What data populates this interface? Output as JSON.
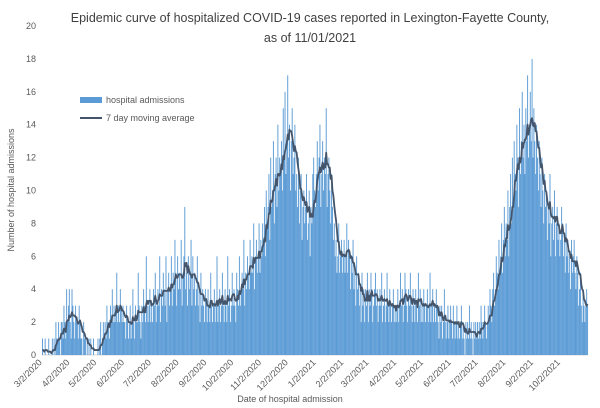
{
  "chart_data": {
    "type": "bar",
    "title": [
      "Epidemic curve of hospitalized COVID-19 cases reported in Lexington-Fayette County,",
      "as of 11/01/2021"
    ],
    "x_label": "Date of hospital admission",
    "y_label": "Number of hospital admissions",
    "ylim": [
      0,
      20
    ],
    "yticks": [
      0,
      2,
      4,
      6,
      8,
      10,
      12,
      14,
      16,
      18,
      20
    ],
    "xticks": [
      "3/2/2020",
      "4/2/2020",
      "5/2/2020",
      "6/2/2020",
      "7/2/2020",
      "8/2/2020",
      "9/2/2020",
      "10/2/2020",
      "11/2/2020",
      "12/2/2020",
      "1/2/2021",
      "2/2/2021",
      "3/2/2021",
      "4/2/2021",
      "5/2/2021",
      "6/2/2021",
      "7/2/2021",
      "8/2/2021",
      "9/2/2021",
      "10/2/2021"
    ],
    "legend": "upper left",
    "series": [
      {
        "name": "hospital admissions",
        "type": "bar",
        "color": "#5b9bd5",
        "values": [
          1,
          0,
          0,
          1,
          0,
          0,
          0,
          1,
          0,
          0,
          0,
          1,
          0,
          1,
          0,
          2,
          1,
          1,
          2,
          1,
          0,
          2,
          2,
          1,
          3,
          2,
          1,
          4,
          2,
          3,
          4,
          2,
          1,
          4,
          3,
          2,
          1,
          3,
          2,
          2,
          1,
          3,
          2,
          1,
          1,
          0,
          2,
          1,
          1,
          0,
          1,
          0,
          1,
          0,
          1,
          0,
          0,
          1,
          0,
          0,
          0,
          0,
          1,
          0,
          1,
          2,
          0,
          1,
          2,
          1,
          2,
          1,
          3,
          2,
          2,
          1,
          3,
          2,
          4,
          2,
          3,
          2,
          3,
          5,
          2,
          3,
          2,
          4,
          3,
          2,
          3,
          2,
          2,
          1,
          3,
          2,
          1,
          2,
          3,
          1,
          2,
          4,
          2,
          1,
          3,
          2,
          2,
          5,
          3,
          2,
          1,
          3,
          2,
          4,
          3,
          2,
          6,
          3,
          2,
          3,
          4,
          2,
          3,
          2,
          4,
          3,
          5,
          2,
          3,
          4,
          3,
          6,
          2,
          4,
          3,
          5,
          4,
          3,
          6,
          2,
          4,
          5,
          3,
          4,
          6,
          3,
          5,
          4,
          7,
          5,
          3,
          6,
          4,
          5,
          4,
          7,
          3,
          5,
          6,
          9,
          4,
          5,
          3,
          6,
          4,
          5,
          7,
          3,
          6,
          4,
          5,
          3,
          4,
          6,
          3,
          4,
          2,
          5,
          3,
          4,
          3,
          2,
          4,
          3,
          2,
          4,
          3,
          2,
          5,
          3,
          2,
          3,
          4,
          2,
          3,
          6,
          2,
          3,
          4,
          2,
          3,
          5,
          3,
          2,
          4,
          3,
          2,
          6,
          3,
          4,
          2,
          3,
          5,
          3,
          4,
          3,
          2,
          5,
          4,
          3,
          6,
          3,
          4,
          5,
          4,
          7,
          3,
          5,
          4,
          6,
          5,
          4,
          7,
          5,
          6,
          5,
          8,
          4,
          6,
          7,
          5,
          6,
          8,
          5,
          7,
          6,
          8,
          7,
          9,
          6,
          10,
          8,
          9,
          11,
          7,
          12,
          9,
          10,
          13,
          8,
          11,
          12,
          9,
          14,
          10,
          12,
          11,
          13,
          10,
          15,
          12,
          16,
          11,
          13,
          17,
          12,
          14,
          10,
          13,
          15,
          11,
          12,
          14,
          10,
          11,
          9,
          12,
          8,
          10,
          11,
          7,
          9,
          10,
          8,
          9,
          11,
          7,
          8,
          10,
          6,
          9,
          8,
          11,
          12,
          10,
          9,
          11,
          13,
          10,
          12,
          14,
          9,
          11,
          13,
          10,
          12,
          11,
          15,
          9,
          11,
          12,
          10,
          8,
          11,
          9,
          7,
          8,
          6,
          7,
          5,
          6,
          8,
          5,
          6,
          7,
          5,
          6,
          7,
          5,
          6,
          8,
          5,
          7,
          6,
          4,
          6,
          5,
          7,
          4,
          5,
          3,
          6,
          4,
          5,
          3,
          4,
          2,
          5,
          3,
          4,
          2,
          4,
          3,
          5,
          2,
          4,
          3,
          5,
          4,
          2,
          3,
          4,
          5,
          3,
          4,
          2,
          3,
          4,
          3,
          5,
          2,
          3,
          4,
          2,
          3,
          5,
          3,
          2,
          4,
          3,
          2,
          3,
          4,
          2,
          3,
          2,
          3,
          4,
          2,
          3,
          5,
          3,
          4,
          2,
          3,
          5,
          4,
          3,
          2,
          4,
          3,
          5,
          3,
          2,
          4,
          3,
          2,
          4,
          3,
          2,
          5,
          3,
          4,
          2,
          3,
          2,
          4,
          3,
          2,
          3,
          4,
          2,
          3,
          5,
          2,
          3,
          4,
          2,
          3,
          2,
          4,
          3,
          2,
          1,
          3,
          2,
          3,
          1,
          2,
          4,
          2,
          1,
          2,
          3,
          1,
          2,
          3,
          2,
          1,
          3,
          2,
          1,
          2,
          3,
          1,
          2,
          1,
          2,
          3,
          1,
          2,
          1,
          0,
          2,
          1,
          2,
          1,
          3,
          1,
          2,
          1,
          0,
          2,
          1,
          2,
          1,
          2,
          1,
          2,
          1,
          3,
          2,
          1,
          2,
          3,
          2,
          1,
          2,
          3,
          2,
          4,
          3,
          2,
          4,
          5,
          3,
          4,
          6,
          5,
          4,
          7,
          5,
          6,
          8,
          5,
          7,
          9,
          6,
          8,
          7,
          10,
          6,
          9,
          11,
          8,
          12,
          9,
          13,
          11,
          10,
          14,
          12,
          9,
          15,
          11,
          13,
          16,
          12,
          14,
          11,
          15,
          13,
          17,
          12,
          14,
          16,
          13,
          18,
          12,
          15,
          13,
          11,
          14,
          12,
          10,
          13,
          11,
          9,
          12,
          10,
          8,
          11,
          9,
          10,
          7,
          9,
          8,
          11,
          6,
          8,
          9,
          7,
          10,
          6,
          8,
          9,
          7,
          8,
          6,
          7,
          9,
          8,
          6,
          7,
          5,
          8,
          6,
          7,
          5,
          6,
          4,
          7,
          5,
          6,
          7,
          5,
          4,
          6,
          5,
          3,
          4,
          5,
          3,
          2,
          4,
          3,
          2,
          3,
          4,
          3
        ]
      },
      {
        "name": "7 day moving average",
        "type": "line",
        "color": "#44546a",
        "values": [
          0.3,
          0.3,
          0.2,
          0.3,
          0.3,
          0.3,
          0.2,
          0.2,
          0.2,
          0.2,
          0.1,
          0.2,
          0.3,
          0.3,
          0.3,
          0.6,
          0.7,
          0.9,
          0.9,
          1.0,
          1.0,
          1.3,
          1.3,
          1.3,
          1.6,
          1.6,
          1.4,
          2.0,
          2.1,
          2.1,
          2.4,
          2.3,
          2.4,
          2.6,
          2.4,
          2.4,
          2.4,
          2.3,
          2.3,
          2.0,
          1.9,
          2.0,
          2.1,
          1.9,
          1.7,
          1.4,
          1.4,
          1.3,
          1.1,
          1.0,
          1.0,
          0.7,
          0.7,
          0.6,
          0.6,
          0.4,
          0.4,
          0.4,
          0.3,
          0.3,
          0.3,
          0.3,
          0.3,
          0.3,
          0.4,
          0.6,
          0.6,
          0.7,
          1.0,
          1.0,
          1.3,
          1.3,
          1.4,
          1.7,
          1.9,
          1.7,
          2.1,
          2.0,
          2.4,
          2.4,
          2.4,
          2.4,
          2.6,
          3.0,
          2.6,
          2.7,
          2.7,
          3.0,
          2.9,
          2.7,
          2.7,
          2.6,
          2.4,
          2.3,
          2.4,
          2.3,
          2.0,
          2.0,
          2.0,
          1.9,
          1.9,
          2.3,
          2.1,
          2.1,
          2.4,
          2.1,
          2.3,
          2.7,
          2.6,
          2.6,
          2.6,
          2.6,
          2.6,
          2.9,
          2.6,
          2.6,
          3.1,
          3.3,
          3.1,
          3.3,
          3.3,
          3.3,
          3.0,
          3.1,
          3.1,
          3.3,
          3.6,
          3.3,
          3.1,
          3.3,
          3.4,
          3.7,
          3.6,
          3.6,
          3.6,
          3.9,
          3.9,
          3.9,
          3.9,
          3.9,
          3.9,
          4.1,
          3.9,
          3.9,
          4.3,
          4.1,
          4.3,
          4.3,
          4.6,
          4.9,
          4.7,
          4.7,
          4.9,
          4.9,
          4.9,
          4.9,
          4.7,
          4.7,
          4.9,
          5.6,
          5.4,
          5.6,
          5.0,
          5.4,
          5.1,
          4.9,
          4.9,
          4.7,
          4.9,
          4.9,
          4.9,
          4.7,
          4.6,
          4.4,
          4.4,
          4.1,
          3.9,
          3.7,
          3.7,
          3.7,
          3.6,
          3.3,
          3.4,
          3.4,
          3.0,
          3.0,
          3.0,
          2.9,
          3.3,
          3.3,
          3.0,
          3.1,
          3.1,
          3.0,
          3.1,
          3.3,
          3.0,
          3.3,
          3.4,
          3.1,
          3.3,
          3.6,
          3.1,
          3.1,
          3.3,
          3.1,
          3.1,
          3.6,
          3.3,
          3.4,
          3.4,
          3.3,
          3.6,
          3.7,
          3.7,
          3.4,
          3.3,
          3.3,
          3.6,
          3.4,
          3.9,
          3.7,
          3.9,
          4.3,
          4.1,
          4.6,
          4.3,
          4.6,
          4.6,
          4.9,
          4.9,
          4.9,
          5.4,
          5.4,
          5.4,
          5.3,
          5.9,
          5.6,
          5.9,
          5.9,
          5.9,
          5.9,
          6.3,
          5.9,
          6.3,
          6.3,
          6.6,
          6.7,
          7.1,
          6.9,
          7.9,
          7.7,
          8.1,
          8.6,
          8.6,
          9.4,
          9.3,
          9.4,
          10.0,
          10.0,
          10.3,
          10.7,
          10.3,
          11.0,
          11.0,
          10.9,
          11.1,
          11.6,
          11.3,
          12.1,
          11.9,
          12.4,
          12.6,
          12.9,
          13.4,
          13.1,
          13.7,
          13.6,
          13.6,
          13.3,
          12.9,
          12.4,
          12.7,
          12.4,
          12.3,
          11.7,
          11.3,
          10.9,
          10.1,
          10.1,
          9.7,
          9.4,
          9.6,
          9.3,
          9.1,
          9.3,
          8.7,
          8.9,
          9.0,
          8.4,
          8.6,
          8.4,
          8.4,
          9.1,
          9.4,
          9.3,
          9.9,
          10.6,
          10.9,
          11.1,
          11.4,
          11.1,
          11.4,
          11.7,
          11.3,
          11.6,
          11.4,
          12.3,
          11.6,
          11.6,
          11.4,
          11.4,
          10.7,
          10.9,
          10.0,
          9.7,
          9.1,
          8.6,
          8.2,
          7.6,
          6.9,
          6.9,
          6.3,
          6.1,
          6.3,
          6.0,
          6.1,
          6.1,
          6.0,
          6.0,
          6.3,
          6.3,
          6.4,
          6.3,
          5.9,
          6.0,
          5.9,
          5.6,
          5.6,
          5.3,
          4.9,
          4.9,
          4.9,
          4.9,
          4.3,
          4.3,
          3.9,
          4.1,
          3.7,
          3.7,
          3.3,
          3.4,
          3.3,
          3.9,
          3.3,
          3.6,
          3.3,
          3.7,
          3.9,
          3.6,
          3.6,
          3.6,
          3.7,
          3.7,
          3.6,
          3.3,
          3.4,
          3.3,
          3.4,
          3.6,
          3.3,
          3.3,
          3.4,
          3.3,
          3.3,
          3.4,
          3.1,
          3.0,
          3.3,
          3.1,
          3.0,
          3.1,
          3.0,
          2.9,
          3.0,
          2.7,
          3.0,
          3.0,
          2.9,
          3.0,
          3.3,
          3.3,
          3.4,
          3.1,
          3.4,
          3.6,
          3.7,
          3.6,
          3.3,
          3.4,
          3.6,
          3.6,
          3.4,
          3.1,
          3.4,
          3.4,
          3.1,
          3.3,
          3.3,
          2.9,
          3.4,
          3.3,
          3.3,
          3.4,
          3.1,
          3.0,
          3.1,
          3.0,
          3.1,
          3.0,
          3.0,
          2.9,
          3.0,
          3.1,
          3.0,
          3.1,
          3.3,
          3.0,
          3.1,
          3.0,
          2.9,
          3.0,
          2.9,
          2.4,
          2.6,
          2.4,
          2.6,
          2.3,
          2.1,
          2.3,
          2.4,
          2.1,
          2.1,
          2.1,
          2.1,
          2.0,
          2.1,
          2.0,
          2.0,
          2.0,
          1.9,
          2.0,
          1.9,
          2.0,
          1.9,
          2.0,
          1.7,
          1.7,
          2.0,
          1.9,
          1.9,
          1.7,
          1.4,
          1.6,
          1.4,
          1.3,
          1.3,
          1.6,
          1.4,
          1.4,
          1.4,
          1.4,
          1.4,
          1.4,
          1.3,
          1.1,
          1.3,
          1.4,
          1.4,
          1.3,
          1.6,
          1.6,
          1.6,
          1.7,
          2.0,
          1.9,
          1.9,
          1.9,
          2.0,
          2.1,
          2.4,
          2.4,
          2.4,
          2.9,
          3.3,
          3.3,
          3.6,
          3.9,
          4.1,
          4.4,
          4.9,
          4.9,
          5.3,
          5.9,
          5.7,
          6.0,
          6.7,
          6.6,
          7.1,
          7.1,
          7.9,
          7.6,
          7.7,
          8.1,
          8.4,
          9.0,
          9.0,
          9.7,
          10.6,
          10.6,
          11.1,
          11.6,
          11.3,
          12.0,
          11.7,
          12.0,
          12.9,
          12.6,
          12.9,
          13.1,
          13.1,
          13.4,
          14.0,
          13.4,
          13.7,
          14.0,
          14.3,
          14.4,
          14.0,
          13.9,
          14.1,
          13.6,
          13.6,
          13.0,
          12.6,
          12.6,
          12.0,
          11.4,
          11.6,
          11.0,
          10.4,
          10.6,
          10.0,
          9.9,
          9.4,
          9.1,
          8.9,
          9.3,
          8.6,
          8.4,
          8.4,
          8.3,
          8.4,
          8.1,
          8.4,
          8.4,
          7.9,
          7.9,
          7.4,
          7.4,
          7.6,
          7.9,
          7.4,
          7.4,
          6.9,
          7.1,
          7.0,
          6.7,
          6.3,
          6.3,
          5.9,
          6.1,
          5.7,
          5.7,
          5.7,
          5.7,
          5.4,
          5.7,
          5.4,
          5.1,
          4.9,
          4.9,
          4.3,
          4.0,
          3.9,
          3.4,
          3.3,
          3.1,
          3.0,
          3.1
        ]
      }
    ]
  }
}
